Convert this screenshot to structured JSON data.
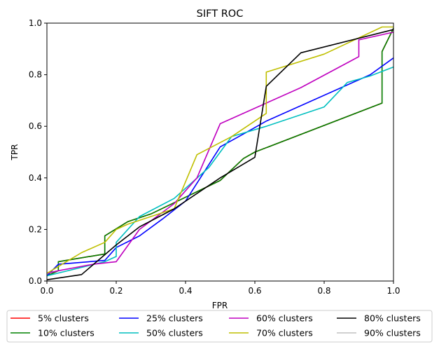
{
  "chart_data": {
    "type": "line",
    "title": "SIFT ROC",
    "xlabel": "FPR",
    "ylabel": "TPR",
    "xlim": [
      0,
      1
    ],
    "ylim": [
      0,
      1
    ],
    "xticks": [
      "0.0",
      "0.2",
      "0.4",
      "0.6",
      "0.8",
      "1.0"
    ],
    "yticks": [
      "0.0",
      "0.2",
      "0.4",
      "0.6",
      "0.8",
      "1.0"
    ],
    "grid": false,
    "legend_placement": "below",
    "series": [
      {
        "name": "5% clusters",
        "color": "#ff0000",
        "x": [
          0,
          0.033,
          0.033,
          0.167,
          0.167,
          0.233,
          0.3,
          0.5,
          0.567,
          0.6,
          0.967,
          0.967,
          1.0
        ],
        "y": [
          0.02,
          0.04,
          0.075,
          0.105,
          0.175,
          0.23,
          0.26,
          0.39,
          0.475,
          0.5,
          0.69,
          0.89,
          0.98
        ]
      },
      {
        "name": "10% clusters",
        "color": "#008000",
        "x": [
          0,
          0.033,
          0.033,
          0.167,
          0.167,
          0.233,
          0.3,
          0.5,
          0.567,
          0.6,
          0.967,
          0.967,
          1.0
        ],
        "y": [
          0.02,
          0.04,
          0.075,
          0.105,
          0.175,
          0.23,
          0.26,
          0.39,
          0.475,
          0.5,
          0.69,
          0.89,
          0.98
        ]
      },
      {
        "name": "25% clusters",
        "color": "#0000ff",
        "x": [
          0,
          0.033,
          0.167,
          0.2,
          0.267,
          0.333,
          0.4,
          0.5,
          0.567,
          0.633,
          0.933,
          1.0
        ],
        "y": [
          0.02,
          0.065,
          0.08,
          0.13,
          0.175,
          0.24,
          0.31,
          0.52,
          0.57,
          0.62,
          0.8,
          0.865
        ]
      },
      {
        "name": "50% clusters",
        "color": "#00bfbf",
        "x": [
          0,
          0.167,
          0.2,
          0.2,
          0.267,
          0.367,
          0.467,
          0.533,
          0.633,
          0.8,
          0.867,
          0.933,
          1.0
        ],
        "y": [
          0.02,
          0.075,
          0.095,
          0.15,
          0.25,
          0.32,
          0.44,
          0.56,
          0.6,
          0.675,
          0.77,
          0.795,
          0.83
        ]
      },
      {
        "name": "60% clusters",
        "color": "#bf00bf",
        "x": [
          0,
          0.033,
          0.133,
          0.2,
          0.267,
          0.367,
          0.433,
          0.5,
          0.733,
          0.9,
          0.9,
          1.0
        ],
        "y": [
          0.03,
          0.04,
          0.065,
          0.075,
          0.2,
          0.3,
          0.4,
          0.61,
          0.75,
          0.87,
          0.935,
          0.965
        ]
      },
      {
        "name": "70% clusters",
        "color": "#bfbf00",
        "x": [
          0,
          0.1,
          0.167,
          0.2,
          0.233,
          0.367,
          0.433,
          0.533,
          0.633,
          0.633,
          0.8,
          0.967,
          1.0
        ],
        "y": [
          0.03,
          0.11,
          0.15,
          0.2,
          0.22,
          0.28,
          0.49,
          0.56,
          0.65,
          0.81,
          0.88,
          0.985,
          0.985
        ]
      },
      {
        "name": "80% clusters",
        "color": "#000000",
        "x": [
          0,
          0.1,
          0.2,
          0.267,
          0.367,
          0.5,
          0.6,
          0.633,
          0.733,
          1.0
        ],
        "y": [
          0.005,
          0.025,
          0.14,
          0.21,
          0.28,
          0.4,
          0.48,
          0.755,
          0.885,
          0.975
        ]
      },
      {
        "name": "90% clusters",
        "color": "#c0c0c0",
        "x": [],
        "y": []
      }
    ]
  }
}
